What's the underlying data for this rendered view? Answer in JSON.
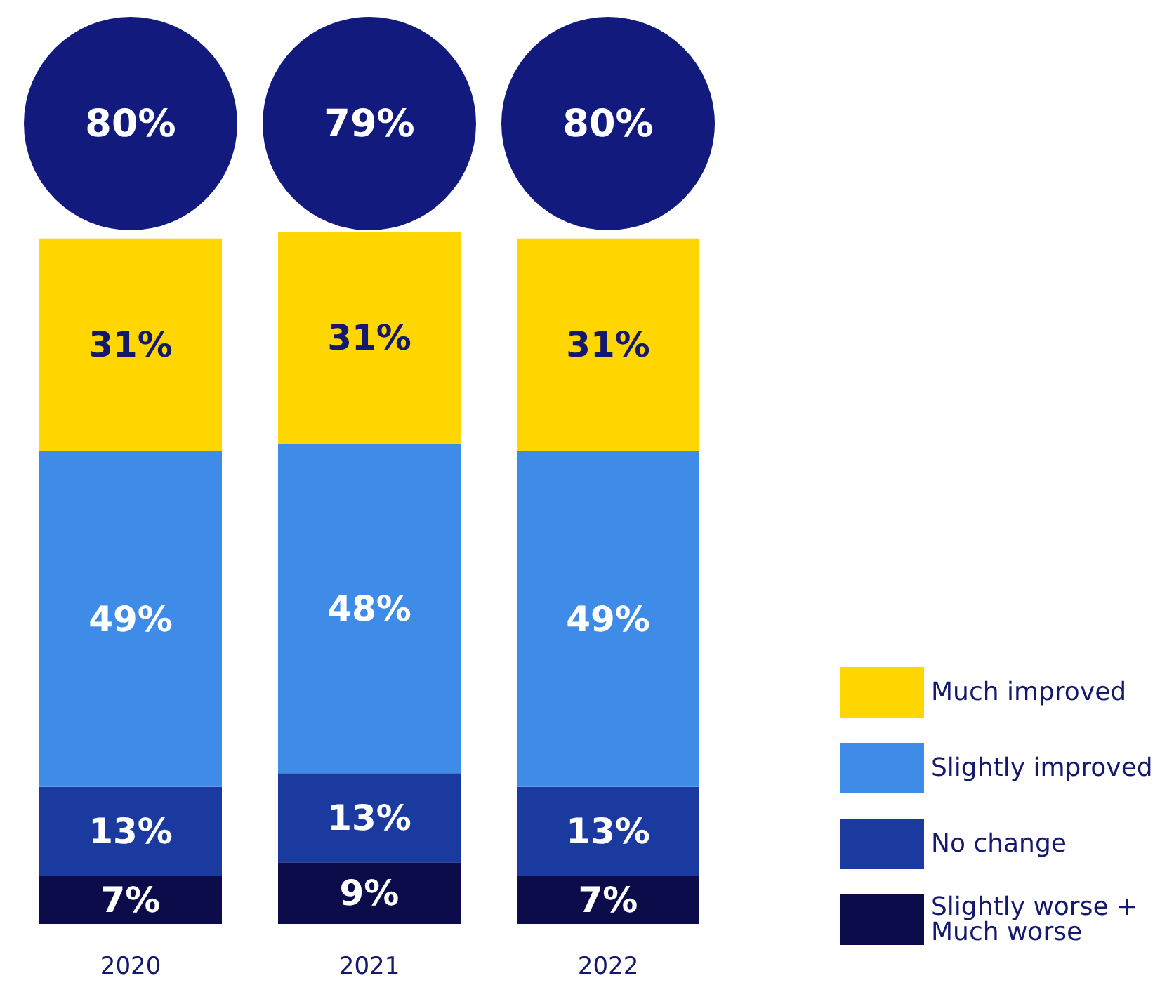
{
  "chart_data": {
    "type": "bar",
    "stacked": true,
    "categories": [
      "2020",
      "2021",
      "2022"
    ],
    "series": [
      {
        "name": "Slightly worse + Much worse",
        "color": "#0c0c4a",
        "values": [
          7,
          9,
          7
        ],
        "value_labels": [
          "7%",
          "9%",
          "7%"
        ]
      },
      {
        "name": "No change",
        "color": "#1a3aa0",
        "values": [
          13,
          13,
          13
        ],
        "value_labels": [
          "13%",
          "13%",
          "13%"
        ]
      },
      {
        "name": "Slightly improved",
        "color": "#3f8ce8",
        "values": [
          49,
          48,
          49
        ],
        "value_labels": [
          "49%",
          "48%",
          "49%"
        ]
      },
      {
        "name": "Much improved",
        "color": "#ffd600",
        "values": [
          31,
          31,
          31
        ],
        "value_labels": [
          "31%",
          "31%",
          "31%"
        ]
      }
    ],
    "annotations": [
      "80%",
      "79%",
      "80%"
    ],
    "legend": "right",
    "grid": false,
    "tick_labels": "x"
  }
}
